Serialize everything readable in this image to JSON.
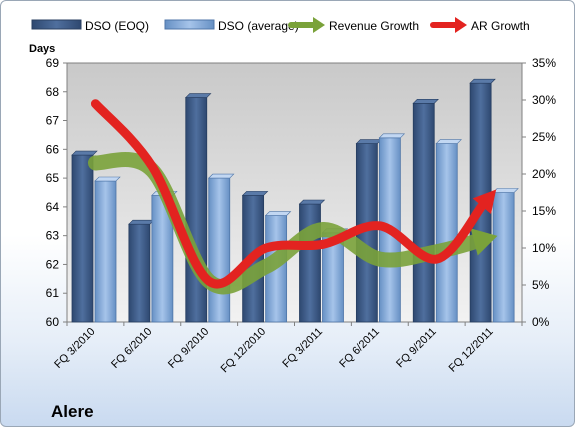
{
  "chart_data": {
    "type": "bar",
    "categories": [
      "FQ 3/2010",
      "FQ 6/2010",
      "FQ 9/2010",
      "FQ 12/2010",
      "FQ 3/2011",
      "FQ 6/2011",
      "FQ 9/2011",
      "FQ 12/2011"
    ],
    "series": [
      {
        "name": "DSO (EOQ)",
        "type": "bar",
        "axis": "left",
        "color": "#3d5a85",
        "values": [
          65.8,
          63.4,
          67.8,
          64.4,
          64.1,
          66.2,
          67.6,
          68.3
        ]
      },
      {
        "name": "DSO (average)",
        "type": "bar",
        "axis": "left",
        "color": "#7fa6d6",
        "values": [
          64.9,
          64.4,
          65.0,
          63.7,
          63.1,
          66.4,
          66.2,
          64.5
        ]
      },
      {
        "name": "Revenue Growth",
        "type": "line",
        "axis": "right",
        "color": "#7aa23a",
        "values": [
          21.5,
          20.5,
          5.5,
          7.5,
          12.5,
          8.5,
          9.5,
          11.5
        ]
      },
      {
        "name": "AR Growth",
        "type": "line",
        "axis": "right",
        "color": "#e32320",
        "values": [
          29.5,
          21.0,
          5.5,
          10.0,
          10.5,
          13.0,
          8.5,
          17.5
        ]
      }
    ],
    "left_axis": {
      "label": "Days",
      "min": 60,
      "max": 69,
      "ticks": [
        60,
        61,
        62,
        63,
        64,
        65,
        66,
        67,
        68,
        69
      ]
    },
    "right_axis": {
      "min": 0,
      "max": 35,
      "ticks": [
        "0%",
        "5%",
        "10%",
        "15%",
        "20%",
        "25%",
        "30%",
        "35%"
      ]
    },
    "grid": false,
    "legend": "top",
    "company": "Alere"
  }
}
